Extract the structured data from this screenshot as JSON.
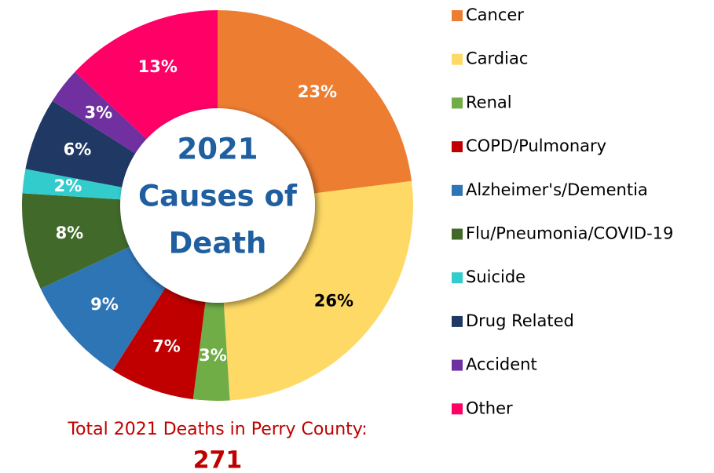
{
  "chart_data": {
    "type": "donut",
    "title": [
      "2021",
      "Causes of",
      "Death"
    ],
    "categories": [
      "Cancer",
      "Cardiac",
      "Renal",
      "COPD/Pulmonary",
      "Alzheimer's/Dementia",
      "Flu/Pneumonia/COVID-19",
      "Suicide",
      "Drug Related",
      "Accident",
      "Other"
    ],
    "values": [
      23,
      26,
      3,
      7,
      9,
      8,
      2,
      6,
      3,
      13
    ],
    "value_labels": [
      "23%",
      "26%",
      "3%",
      "7%",
      "9%",
      "8%",
      "2%",
      "6%",
      "3%",
      "13%"
    ],
    "colors": [
      "#ed7d31",
      "#ffd966",
      "#70ad47",
      "#c00000",
      "#2e75b6",
      "#41692a",
      "#33cccc",
      "#1f3864",
      "#7030a0",
      "#ff0066"
    ],
    "label_colors": [
      "#ffffff",
      "#000000",
      "#ffffff",
      "#ffffff",
      "#ffffff",
      "#ffffff",
      "#ffffff",
      "#ffffff",
      "#ffffff",
      "#ffffff"
    ],
    "legend": "right",
    "total_label": "Total 2021 Deaths in Perry County:",
    "total": 271
  }
}
